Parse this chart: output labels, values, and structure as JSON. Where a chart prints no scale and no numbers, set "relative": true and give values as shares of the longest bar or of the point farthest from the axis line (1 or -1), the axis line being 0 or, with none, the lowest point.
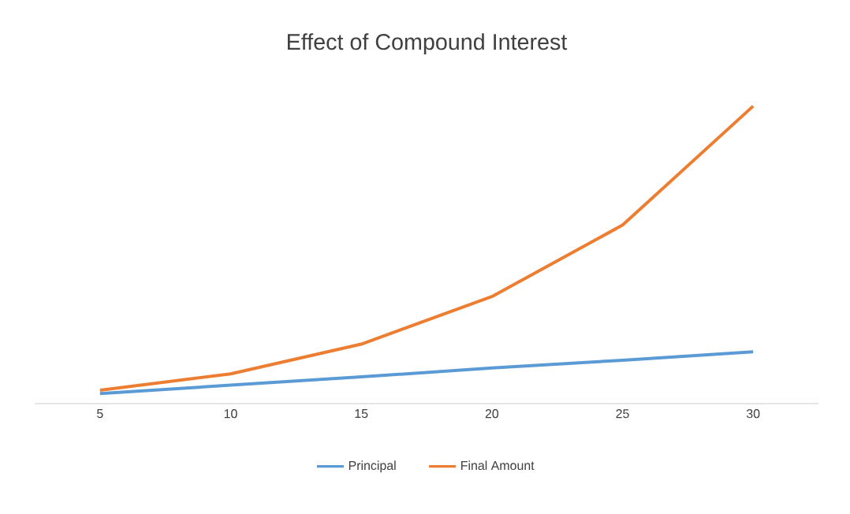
{
  "chart_data": {
    "type": "line",
    "title": "Effect of Compound Interest",
    "categories": [
      "5",
      "10",
      "15",
      "20",
      "25",
      "30"
    ],
    "relative": true,
    "legend": "bottom",
    "grid": false,
    "marker": "none",
    "line_style": "solid",
    "series": [
      {
        "name": "Principal",
        "color": "#5b9bd5",
        "values": [
          0.034,
          0.062,
          0.09,
          0.12,
          0.146,
          0.174
        ]
      },
      {
        "name": "Final Amount",
        "color": "#ed7d31",
        "values": [
          0.045,
          0.1,
          0.2,
          0.36,
          0.6,
          1
        ]
      }
    ]
  }
}
